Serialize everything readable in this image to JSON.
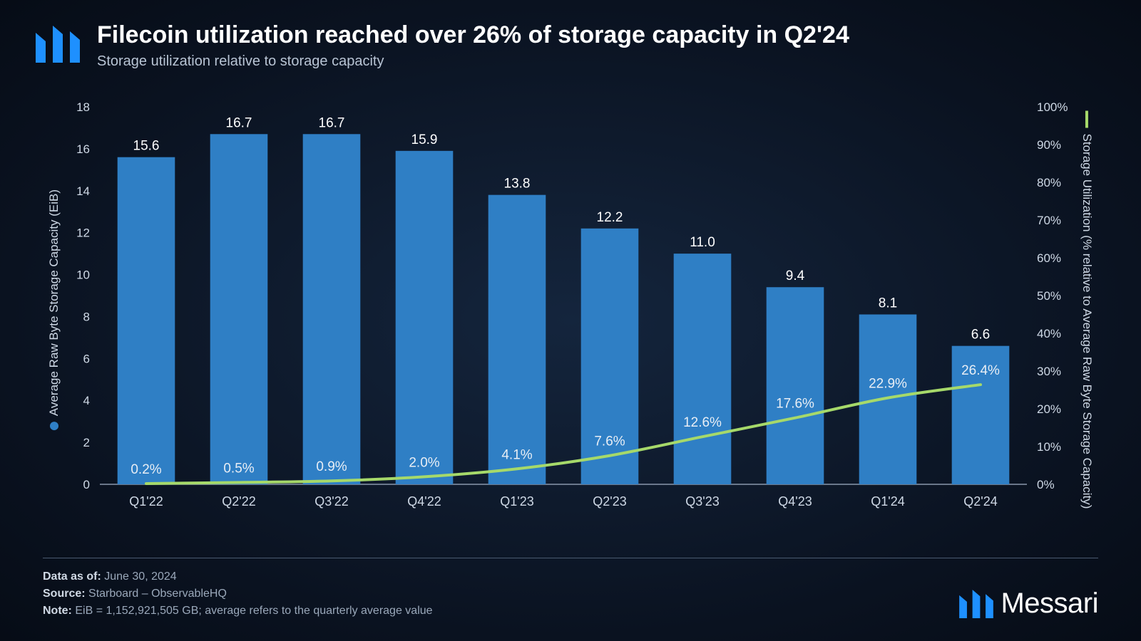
{
  "title": "Filecoin utilization reached over 26% of storage capacity in Q2'24",
  "subtitle": "Storage utilization relative to storage capacity",
  "chart": {
    "type": "bar+line",
    "categories": [
      "Q1'22",
      "Q2'22",
      "Q3'22",
      "Q4'22",
      "Q1'23",
      "Q2'23",
      "Q3'23",
      "Q4'23",
      "Q1'24",
      "Q2'24"
    ],
    "bars": {
      "values": [
        15.6,
        16.7,
        16.7,
        15.9,
        13.8,
        12.2,
        11.0,
        9.4,
        8.1,
        6.6
      ],
      "labels": [
        "15.6",
        "16.7",
        "16.7",
        "15.9",
        "13.8",
        "12.2",
        "11.0",
        "9.4",
        "8.1",
        "6.6"
      ],
      "color": "#2f7fc5",
      "bar_width_frac": 0.62
    },
    "line": {
      "values": [
        0.2,
        0.5,
        0.9,
        2.0,
        4.1,
        7.6,
        12.6,
        17.6,
        22.9,
        26.4
      ],
      "labels": [
        "0.2%",
        "0.5%",
        "0.9%",
        "2.0%",
        "4.1%",
        "7.6%",
        "12.6%",
        "17.6%",
        "22.9%",
        "26.4%"
      ],
      "color": "#a6d96a",
      "width": 4
    },
    "y_left": {
      "label": "Average Raw Byte Storage Capacity (EiB)",
      "min": 0,
      "max": 18,
      "step": 2,
      "ticks": [
        0,
        2,
        4,
        6,
        8,
        10,
        12,
        14,
        16,
        18
      ]
    },
    "y_right": {
      "label": "Storage Utilization (% relative to Average Raw Byte Storage Capacity)",
      "min": 0,
      "max": 100,
      "step": 10,
      "ticks": [
        0,
        10,
        20,
        30,
        40,
        50,
        60,
        70,
        80,
        90,
        100
      ],
      "tick_labels": [
        "0%",
        "10%",
        "20%",
        "30%",
        "40%",
        "50%",
        "60%",
        "70%",
        "80%",
        "90%",
        "100%"
      ]
    },
    "colors": {
      "background": "#0a1626",
      "axis": "#8a98ac",
      "tick_text": "#cfd9e6",
      "bar_label": "#ffffff",
      "line_label": "#e8eef5"
    },
    "fontsize": {
      "title": 34,
      "subtitle": 20,
      "tick": 17,
      "value": 19,
      "xcat": 18
    }
  },
  "footer": {
    "data_as_of_label": "Data as of:",
    "data_as_of": "June 30, 2024",
    "source_label": "Source:",
    "source": "Starboard – ObservableHQ",
    "note_label": "Note:",
    "note": "EiB = 1,152,921,505 GB; average refers to the quarterly average value"
  },
  "brand": "Messari",
  "logo_color": "#1e90ff"
}
